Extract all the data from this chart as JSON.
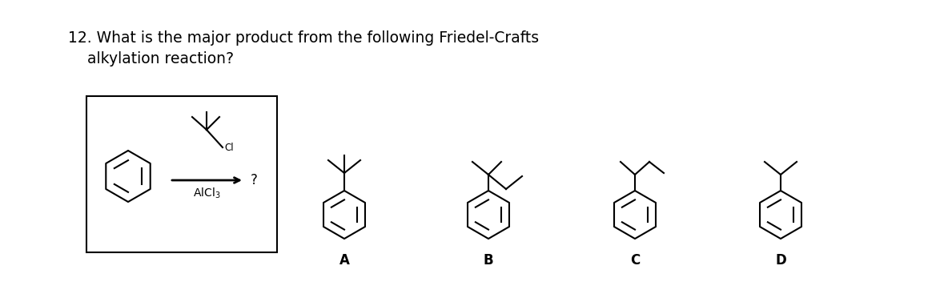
{
  "title_line1": "12. What is the major product from the following Friedel-Crafts",
  "title_line2": "    alkylation reaction?",
  "title_fontsize": 13.5,
  "bg_color": "#ffffff",
  "text_color": "#000000",
  "line_color": "#000000",
  "labels": [
    "A",
    "B",
    "C",
    "D"
  ],
  "label_fontsize": 12,
  "fig_width": 11.79,
  "fig_height": 3.82
}
